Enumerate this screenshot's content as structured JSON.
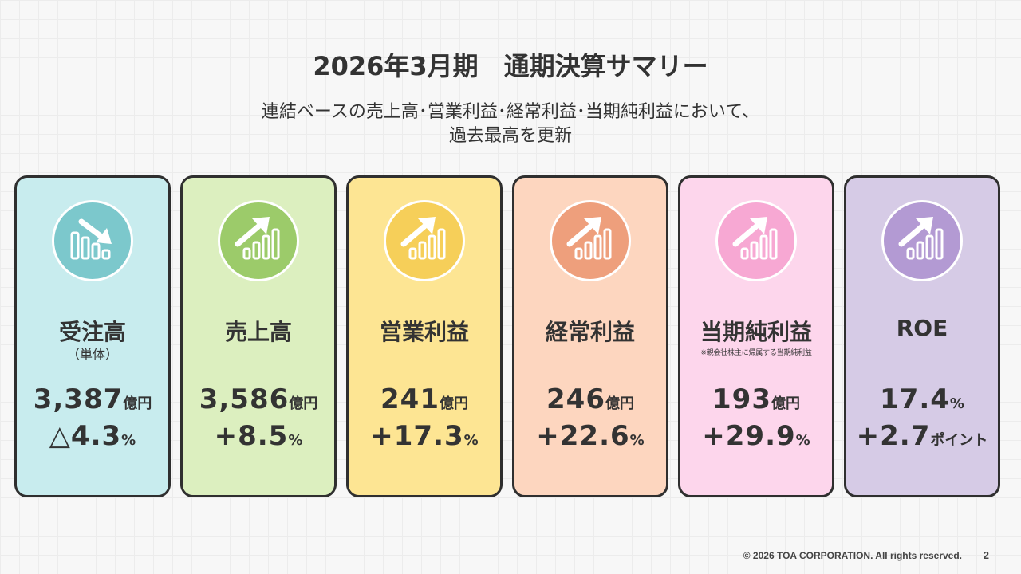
{
  "title": "2026年3月期　通期決算サマリー",
  "subtitle_line1": "連結ベースの売上高･営業利益･経常利益･当期純利益において、",
  "subtitle_line2": "過去最高を更新",
  "cards": [
    {
      "label": "受注高",
      "sub": "（単体）",
      "note": "",
      "value": "3,387",
      "value_unit": "億円",
      "change": "△4.3",
      "change_unit": "%",
      "bg": "#c8ecee",
      "icon_bg": "#7cc8cc",
      "icon": "chart-down-icon"
    },
    {
      "label": "売上高",
      "sub": "",
      "note": "",
      "value": "3,586",
      "value_unit": "億円",
      "change": "+8.5",
      "change_unit": "%",
      "bg": "#dcefbf",
      "icon_bg": "#9ccb6a",
      "icon": "chart-up-icon"
    },
    {
      "label": "営業利益",
      "sub": "",
      "note": "",
      "value": "241",
      "value_unit": "億円",
      "change": "+17.3",
      "change_unit": "%",
      "bg": "#fde593",
      "icon_bg": "#f6cf59",
      "icon": "chart-up-icon"
    },
    {
      "label": "経常利益",
      "sub": "",
      "note": "",
      "value": "246",
      "value_unit": "億円",
      "change": "+22.6",
      "change_unit": "%",
      "bg": "#fdd6bf",
      "icon_bg": "#ee9f7c",
      "icon": "chart-up-icon"
    },
    {
      "label": "当期純利益",
      "sub": "",
      "note": "※親会社株主に帰属する当期純利益",
      "value": "193",
      "value_unit": "億円",
      "change": "+29.9",
      "change_unit": "%",
      "bg": "#fdd6ec",
      "icon_bg": "#f7a8d3",
      "icon": "chart-up-icon"
    },
    {
      "label": "ROE",
      "sub": "",
      "note": "",
      "value": "17.4",
      "value_unit": "%",
      "change": "+2.7",
      "change_unit": "ポイント",
      "bg": "#d6cbe6",
      "icon_bg": "#b39ad3",
      "icon": "chart-up-icon"
    }
  ],
  "footer": {
    "copyright": "© 2026 TOA CORPORATION.  All rights reserved.",
    "page_number": "2"
  }
}
